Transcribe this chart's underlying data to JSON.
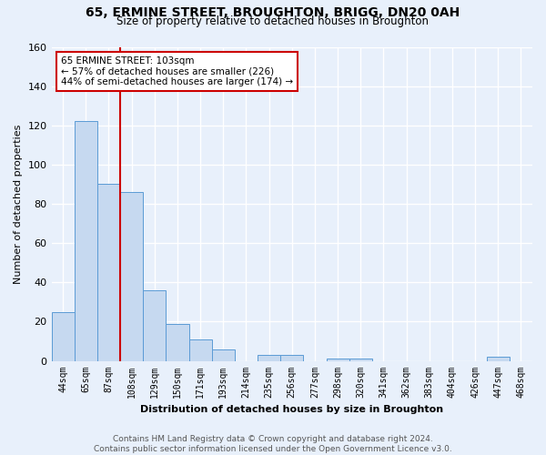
{
  "title1": "65, ERMINE STREET, BROUGHTON, BRIGG, DN20 0AH",
  "title2": "Size of property relative to detached houses in Broughton",
  "xlabel": "Distribution of detached houses by size in Broughton",
  "ylabel": "Number of detached properties",
  "bar_labels": [
    "44sqm",
    "65sqm",
    "87sqm",
    "108sqm",
    "129sqm",
    "150sqm",
    "171sqm",
    "193sqm",
    "214sqm",
    "235sqm",
    "256sqm",
    "277sqm",
    "298sqm",
    "320sqm",
    "341sqm",
    "362sqm",
    "383sqm",
    "404sqm",
    "426sqm",
    "447sqm",
    "468sqm"
  ],
  "bar_values": [
    25,
    122,
    90,
    86,
    36,
    19,
    11,
    6,
    0,
    3,
    3,
    0,
    1,
    1,
    0,
    0,
    0,
    0,
    0,
    2,
    0
  ],
  "bar_color": "#c6d9f0",
  "bar_edge_color": "#5b9bd5",
  "reference_line_color": "#cc0000",
  "annotation_line1": "65 ERMINE STREET: 103sqm",
  "annotation_line2": "← 57% of detached houses are smaller (226)",
  "annotation_line3": "44% of semi-detached houses are larger (174) →",
  "annotation_box_color": "#ffffff",
  "annotation_box_edge_color": "#cc0000",
  "ylim": [
    0,
    160
  ],
  "yticks": [
    0,
    20,
    40,
    60,
    80,
    100,
    120,
    140,
    160
  ],
  "footer_text": "Contains HM Land Registry data © Crown copyright and database right 2024.\nContains public sector information licensed under the Open Government Licence v3.0.",
  "bg_color": "#e8f0fb",
  "grid_color": "#ffffff"
}
